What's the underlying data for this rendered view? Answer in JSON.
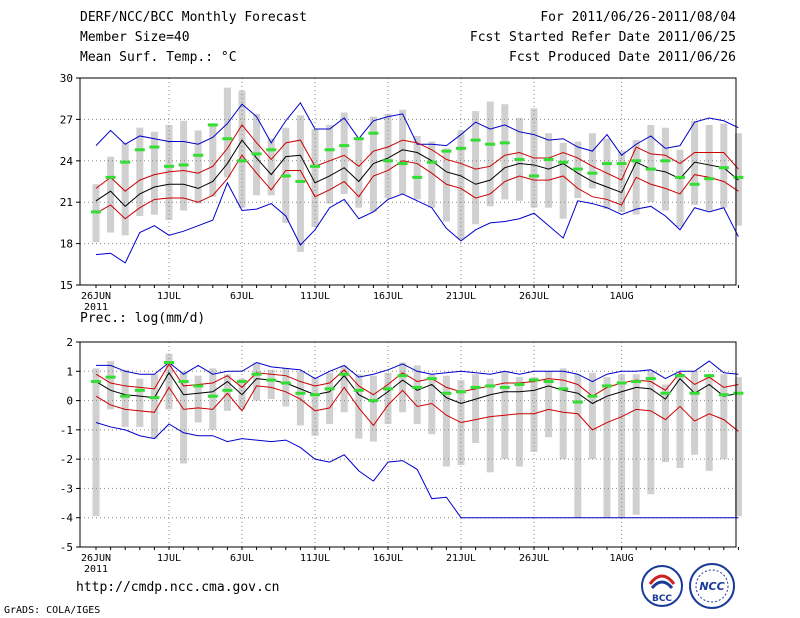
{
  "header": {
    "title": "DERF/NCC/BCC Monthly Forecast",
    "member_size": "Member Size=40",
    "variable": "Mean Surf. Temp.: °C",
    "forecast_period": "For 2011/06/26-2011/08/04",
    "start_date": "Fcst Started Refer Date 2011/06/25",
    "produced_date": "Fcst Produced Date 2011/06/26"
  },
  "footer": {
    "url": "http://cmdp.ncc.cma.gov.cn",
    "credit": "GrADS: COLA/IGES",
    "logo_left_text": "BCC",
    "logo_right_text": "NCC"
  },
  "colors": {
    "max": "#0000cc",
    "sd": "#cc0000",
    "mean": "#000000",
    "obs": "#33dd33",
    "bar": "#d0d0d0",
    "grid": "#888888"
  },
  "chart_data": [
    {
      "type": "line",
      "title": "Mean Surf. Temp.: °C",
      "x_labels": [
        "26JUN",
        "1JUL",
        "6JUL",
        "11JUL",
        "16JUL",
        "21JUL",
        "26JUL",
        "1AUG"
      ],
      "x_label_sub": "2011",
      "x_label_index": [
        0,
        5,
        10,
        15,
        20,
        25,
        30,
        36
      ],
      "ylim": [
        15,
        30
      ],
      "yticks": [
        15,
        18,
        21,
        24,
        27,
        30
      ],
      "mean": [
        21.1,
        21.8,
        20.7,
        21.6,
        22.1,
        22.3,
        22.3,
        22.0,
        22.5,
        23.8,
        25.5,
        24.2,
        23.0,
        24.3,
        24.4,
        22.4,
        22.9,
        23.5,
        22.5,
        23.8,
        24.2,
        24.8,
        24.6,
        24.0,
        23.2,
        22.9,
        22.3,
        22.6,
        23.5,
        23.8,
        23.7,
        23.4,
        23.8,
        23.1,
        22.5,
        22.1,
        21.7,
        23.9,
        23.4,
        23.2,
        22.7,
        23.9,
        23.7,
        23.5,
        22.6
      ],
      "upper_sd": [
        22.0,
        22.8,
        21.8,
        22.6,
        23.0,
        23.2,
        23.3,
        23.1,
        23.6,
        24.9,
        26.6,
        25.3,
        24.1,
        25.3,
        25.5,
        23.6,
        24.0,
        24.4,
        23.6,
        24.7,
        25.0,
        25.5,
        25.3,
        24.8,
        24.1,
        23.8,
        23.4,
        23.6,
        24.4,
        24.6,
        24.2,
        24.2,
        24.6,
        24.2,
        23.6,
        23.1,
        22.6,
        25.0,
        24.5,
        24.4,
        23.8,
        24.6,
        24.6,
        24.6,
        23.4
      ],
      "lower_sd": [
        20.2,
        20.8,
        19.8,
        20.6,
        21.2,
        21.3,
        21.3,
        21.0,
        21.5,
        22.7,
        24.4,
        23.1,
        21.9,
        23.3,
        23.3,
        21.4,
        21.9,
        22.5,
        21.4,
        22.9,
        23.3,
        24.0,
        23.8,
        23.1,
        22.3,
        22.0,
        21.3,
        21.6,
        22.5,
        22.9,
        22.6,
        22.6,
        22.9,
        22.0,
        21.4,
        21.2,
        20.8,
        22.8,
        22.3,
        22.0,
        21.6,
        23.0,
        22.8,
        22.5,
        21.8
      ],
      "max": [
        25.1,
        26.2,
        25.2,
        25.8,
        25.6,
        25.4,
        25.4,
        25.2,
        25.7,
        26.7,
        28.1,
        27.2,
        25.3,
        26.9,
        28.2,
        26.3,
        26.3,
        27.1,
        25.6,
        26.9,
        27.2,
        27.4,
        25.2,
        25.2,
        25.1,
        25.9,
        26.8,
        26.3,
        26.6,
        26.1,
        25.9,
        25.5,
        25.6,
        25.0,
        24.7,
        25.9,
        24.4,
        25.2,
        25.8,
        24.9,
        25.1,
        26.8,
        27.1,
        26.9,
        26.4
      ],
      "min": [
        17.2,
        17.3,
        16.6,
        18.8,
        19.3,
        18.6,
        18.9,
        19.3,
        19.7,
        22.4,
        20.4,
        20.5,
        20.9,
        20.0,
        17.9,
        19.0,
        20.6,
        21.2,
        19.8,
        20.3,
        21.2,
        21.6,
        21.1,
        20.6,
        19.1,
        18.2,
        19.0,
        19.5,
        19.6,
        19.8,
        20.2,
        19.3,
        18.4,
        21.1,
        20.9,
        20.6,
        20.1,
        20.5,
        20.7,
        20.0,
        19.0,
        20.6,
        20.3,
        20.6,
        18.5
      ],
      "bar_top": [
        22.3,
        24.3,
        25.3,
        26.4,
        26.1,
        26.6,
        26.9,
        26.2,
        26.6,
        29.3,
        29.1,
        27.4,
        25.6,
        26.4,
        27.3,
        26.3,
        26.6,
        27.5,
        25.7,
        27.2,
        27.4,
        27.7,
        25.8,
        25.4,
        24.9,
        26.2,
        27.6,
        28.3,
        28.1,
        27.1,
        27.8,
        26.0,
        25.3,
        25.4,
        26.0,
        25.6,
        24.7,
        25.5,
        26.6,
        26.4,
        24.8,
        26.9,
        26.6,
        26.7,
        26.0
      ],
      "bar_bot": [
        18.1,
        18.8,
        18.6,
        20.0,
        20.1,
        19.7,
        20.4,
        20.9,
        21.4,
        22.8,
        20.6,
        21.5,
        21.5,
        19.5,
        17.4,
        19.2,
        20.9,
        21.6,
        20.6,
        20.3,
        21.3,
        21.6,
        21.2,
        20.6,
        19.6,
        18.3,
        19.4,
        20.7,
        21.2,
        21.1,
        20.6,
        20.6,
        19.8,
        21.3,
        22.0,
        20.5,
        20.3,
        20.1,
        21.0,
        20.4,
        19.2,
        20.8,
        20.4,
        20.6,
        19.3
      ],
      "obs": [
        20.3,
        22.8,
        23.9,
        24.8,
        25.0,
        23.6,
        23.7,
        24.4,
        26.6,
        25.6,
        24.0,
        24.5,
        24.8,
        22.9,
        22.5,
        23.6,
        24.8,
        25.1,
        25.6,
        26.0,
        24.0,
        23.8,
        22.8,
        23.9,
        24.7,
        24.9,
        25.5,
        25.2,
        25.3,
        24.1,
        22.9,
        24.1,
        23.9,
        23.4,
        23.1,
        23.8,
        23.8,
        24.0,
        23.4,
        24.0,
        22.8,
        22.3,
        22.7,
        23.5,
        22.8
      ]
    },
    {
      "type": "line",
      "title": "Prec.: log(mm/d)",
      "x_labels": [
        "26JUN",
        "1JUL",
        "6JUL",
        "11JUL",
        "16JUL",
        "21JUL",
        "26JUL",
        "1AUG"
      ],
      "x_label_sub": "2011",
      "x_label_index": [
        0,
        5,
        10,
        15,
        20,
        25,
        30,
        36
      ],
      "ylim": [
        -5,
        2
      ],
      "yticks": [
        -5,
        -4,
        -3,
        -2,
        -1,
        0,
        1,
        2
      ],
      "mean": [
        0.65,
        0.35,
        0.2,
        0.15,
        0.1,
        0.95,
        0.2,
        0.25,
        0.3,
        0.65,
        0.2,
        0.75,
        0.7,
        0.6,
        0.4,
        0.2,
        0.3,
        0.85,
        0.2,
        -0.05,
        0.3,
        0.7,
        0.35,
        0.55,
        0.1,
        -0.1,
        0.05,
        0.2,
        0.3,
        0.3,
        0.35,
        0.5,
        0.35,
        0.25,
        -0.1,
        0.15,
        0.3,
        0.45,
        0.4,
        0.05,
        0.75,
        0.25,
        0.55,
        0.15,
        0.25
      ],
      "upper_sd": [
        0.9,
        0.6,
        0.5,
        0.45,
        0.4,
        1.25,
        0.5,
        0.55,
        0.6,
        0.85,
        0.45,
        0.95,
        0.9,
        0.85,
        0.65,
        0.5,
        0.6,
        1.05,
        0.5,
        0.2,
        0.55,
        0.95,
        0.65,
        0.75,
        0.45,
        0.3,
        0.4,
        0.5,
        0.6,
        0.6,
        0.65,
        0.75,
        0.7,
        0.55,
        0.15,
        0.45,
        0.6,
        0.7,
        0.65,
        0.35,
        0.95,
        0.55,
        0.8,
        0.45,
        0.55
      ],
      "lower_sd": [
        0.15,
        -0.15,
        -0.3,
        -0.35,
        -0.4,
        0.45,
        -0.3,
        -0.25,
        -0.3,
        0.25,
        -0.35,
        0.5,
        0.45,
        0.3,
        0.05,
        -0.35,
        -0.25,
        0.45,
        -0.25,
        -0.85,
        -0.15,
        0.35,
        -0.2,
        -0.1,
        -0.5,
        -0.75,
        -0.65,
        -0.55,
        -0.5,
        -0.45,
        -0.45,
        -0.3,
        -0.4,
        -0.45,
        -1.0,
        -0.75,
        -0.55,
        -0.3,
        -0.35,
        -0.65,
        -0.2,
        -0.7,
        -0.45,
        -0.65,
        -1.05
      ],
      "max": [
        1.2,
        1.2,
        1.0,
        0.9,
        0.9,
        1.3,
        0.9,
        1.2,
        0.9,
        1.0,
        1.0,
        1.3,
        1.15,
        1.1,
        1.05,
        0.75,
        1.0,
        1.2,
        0.8,
        0.9,
        1.05,
        1.25,
        1.0,
        0.9,
        0.95,
        1.0,
        0.95,
        0.9,
        1.0,
        0.9,
        1.0,
        1.0,
        1.0,
        0.9,
        0.65,
        0.9,
        1.0,
        1.0,
        1.05,
        0.75,
        1.0,
        1.0,
        1.35,
        0.95,
        0.9
      ],
      "min": [
        -0.75,
        -0.9,
        -1.0,
        -1.2,
        -1.3,
        -0.8,
        -1.1,
        -1.2,
        -1.2,
        -1.4,
        -1.3,
        -1.35,
        -1.4,
        -1.35,
        -1.6,
        -2.0,
        -2.1,
        -1.85,
        -2.4,
        -2.75,
        -2.1,
        -2.05,
        -2.35,
        -3.35,
        -3.3,
        -4.0,
        -4.0,
        -4.0,
        -4.0,
        -4.0,
        -4.0,
        -4.0,
        -4.0,
        -4.0,
        -4.0,
        -4.0,
        -4.0,
        -4.0,
        -4.0,
        -4.0,
        -4.0,
        -4.0,
        -4.0,
        -4.0,
        -4.0
      ],
      "bar_top": [
        1.1,
        1.35,
        1.05,
        0.75,
        0.9,
        1.6,
        1.0,
        0.85,
        1.1,
        0.9,
        0.75,
        1.3,
        1.05,
        1.1,
        1.0,
        0.8,
        0.95,
        1.2,
        0.9,
        0.85,
        0.95,
        1.3,
        1.2,
        0.9,
        0.85,
        0.7,
        0.9,
        0.75,
        1.0,
        0.8,
        0.8,
        1.0,
        1.1,
        0.9,
        0.95,
        0.8,
        0.9,
        0.9,
        1.0,
        0.55,
        0.9,
        1.0,
        0.9,
        0.9,
        0.8
      ],
      "bar_bot": [
        -3.95,
        -0.3,
        -0.9,
        -0.9,
        -1.3,
        -0.3,
        -2.15,
        -0.75,
        -1.0,
        -0.35,
        -0.3,
        0.0,
        0.05,
        -0.2,
        -0.85,
        -1.2,
        -0.8,
        -0.4,
        -1.3,
        -1.4,
        -0.8,
        -0.4,
        -0.8,
        -1.15,
        -2.25,
        -2.2,
        -1.45,
        -2.45,
        -2.0,
        -2.25,
        -1.75,
        -1.25,
        -2.0,
        -4.0,
        -2.0,
        -4.0,
        -4.0,
        -3.9,
        -3.2,
        -2.1,
        -2.3,
        -1.85,
        -2.4,
        -2.0,
        -3.95
      ],
      "obs": [
        0.65,
        0.8,
        0.15,
        0.35,
        0.1,
        1.3,
        0.65,
        0.5,
        0.15,
        0.35,
        0.65,
        0.9,
        0.7,
        0.6,
        0.25,
        0.2,
        0.4,
        0.9,
        0.35,
        0.0,
        0.4,
        0.85,
        0.45,
        0.75,
        0.25,
        0.3,
        0.45,
        0.5,
        0.45,
        0.55,
        0.7,
        0.65,
        0.4,
        -0.05,
        0.15,
        0.5,
        0.6,
        0.65,
        0.75,
        0.25,
        0.85,
        0.25,
        0.85,
        0.2,
        0.25
      ]
    }
  ]
}
